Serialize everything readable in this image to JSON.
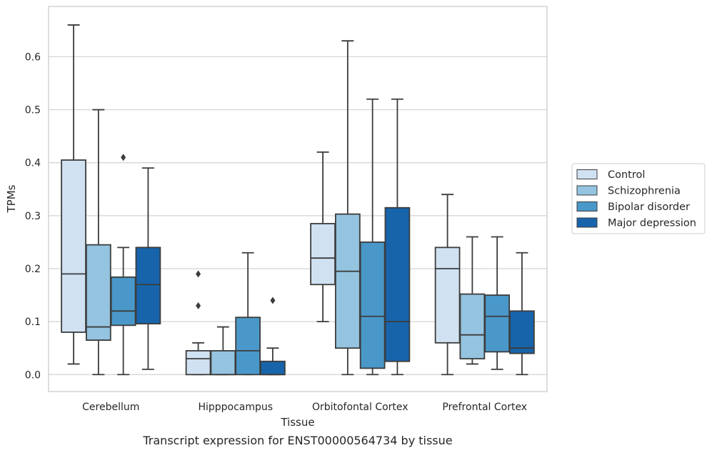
{
  "chart_data": {
    "type": "box",
    "title": "",
    "caption": "Transcript expression for ENST00000564734 by tissue",
    "xlabel": "Tissue",
    "ylabel": "TPMs",
    "ylim": [
      -0.032,
      0.695
    ],
    "yticks": [
      0.0,
      0.1,
      0.2,
      0.3,
      0.4,
      0.5,
      0.6
    ],
    "ytick_labels": [
      "0.0",
      "0.1",
      "0.2",
      "0.3",
      "0.4",
      "0.5",
      "0.6"
    ],
    "grid": "horizontal",
    "legend_position": "right",
    "categories": [
      "Cerebellum",
      "Hipppocampus",
      "Orbitofontal Cortex",
      "Prefrontal Cortex"
    ],
    "series": [
      {
        "name": "Control",
        "color": "#d0e1f2",
        "boxes": [
          {
            "whislo": 0.02,
            "q1": 0.08,
            "med": 0.19,
            "q3": 0.405,
            "whishi": 0.66,
            "fliers": []
          },
          {
            "whislo": 0.0,
            "q1": 0.0,
            "med": 0.03,
            "q3": 0.045,
            "whishi": 0.06,
            "fliers": [
              0.13,
              0.19
            ]
          },
          {
            "whislo": 0.1,
            "q1": 0.17,
            "med": 0.22,
            "q3": 0.285,
            "whishi": 0.42,
            "fliers": []
          },
          {
            "whislo": 0.0,
            "q1": 0.06,
            "med": 0.2,
            "q3": 0.24,
            "whishi": 0.34,
            "fliers": []
          }
        ]
      },
      {
        "name": "Schizophrenia",
        "color": "#94c4df",
        "boxes": [
          {
            "whislo": 0.0,
            "q1": 0.065,
            "med": 0.09,
            "q3": 0.245,
            "whishi": 0.5,
            "fliers": []
          },
          {
            "whislo": 0.0,
            "q1": 0.0,
            "med": 0.0,
            "q3": 0.045,
            "whishi": 0.09,
            "fliers": []
          },
          {
            "whislo": 0.0,
            "q1": 0.05,
            "med": 0.195,
            "q3": 0.303,
            "whishi": 0.63,
            "fliers": []
          },
          {
            "whislo": 0.02,
            "q1": 0.03,
            "med": 0.075,
            "q3": 0.152,
            "whishi": 0.26,
            "fliers": []
          }
        ]
      },
      {
        "name": "Bipolar disorder",
        "color": "#4a98c9",
        "boxes": [
          {
            "whislo": 0.0,
            "q1": 0.093,
            "med": 0.12,
            "q3": 0.184,
            "whishi": 0.24,
            "fliers": [
              0.41
            ]
          },
          {
            "whislo": 0.0,
            "q1": 0.0,
            "med": 0.045,
            "q3": 0.108,
            "whishi": 0.23,
            "fliers": []
          },
          {
            "whislo": 0.0,
            "q1": 0.012,
            "med": 0.11,
            "q3": 0.25,
            "whishi": 0.52,
            "fliers": []
          },
          {
            "whislo": 0.01,
            "q1": 0.043,
            "med": 0.11,
            "q3": 0.15,
            "whishi": 0.26,
            "fliers": []
          }
        ]
      },
      {
        "name": "Major depression",
        "color": "#1764ab",
        "boxes": [
          {
            "whislo": 0.01,
            "q1": 0.096,
            "med": 0.17,
            "q3": 0.24,
            "whishi": 0.39,
            "fliers": []
          },
          {
            "whislo": 0.0,
            "q1": 0.0,
            "med": 0.0,
            "q3": 0.025,
            "whishi": 0.05,
            "fliers": [
              0.14
            ]
          },
          {
            "whislo": 0.0,
            "q1": 0.025,
            "med": 0.1,
            "q3": 0.315,
            "whishi": 0.52,
            "fliers": []
          },
          {
            "whislo": 0.0,
            "q1": 0.04,
            "med": 0.05,
            "q3": 0.12,
            "whishi": 0.23,
            "fliers": []
          }
        ]
      }
    ]
  }
}
